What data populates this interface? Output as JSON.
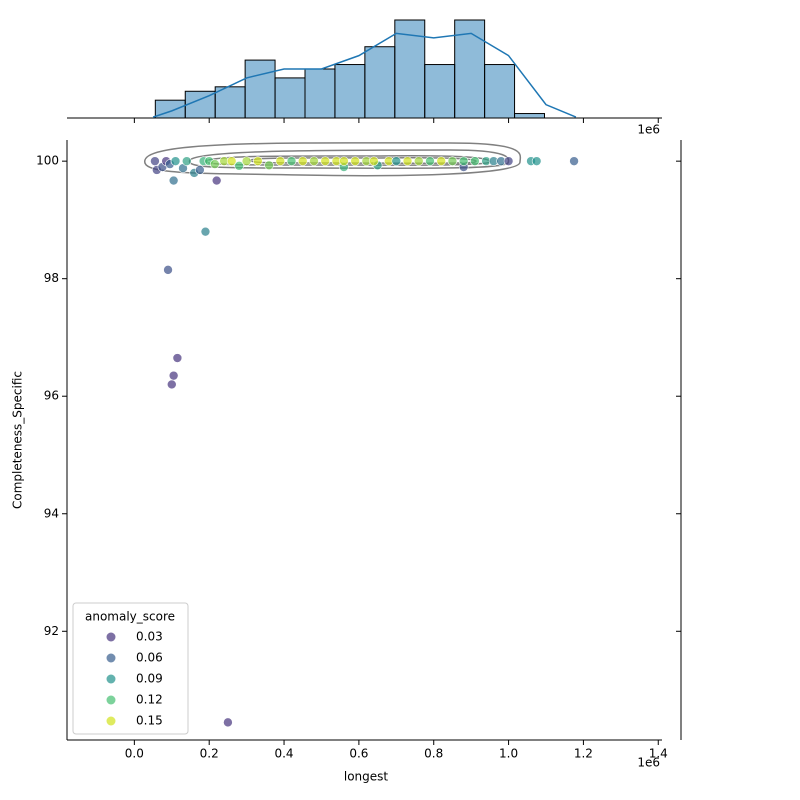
{
  "chart_data": {
    "type": "scatter",
    "x_label": "longest",
    "y_label": "Completeness_Specific",
    "x_offset_label": "1e6",
    "xlim": [
      -180000,
      1410000
    ],
    "ylim": [
      90.15,
      100.36
    ],
    "xticks": [
      {
        "value": 0,
        "label": "0.0"
      },
      {
        "value": 200000,
        "label": "0.2"
      },
      {
        "value": 400000,
        "label": "0.4"
      },
      {
        "value": 600000,
        "label": "0.6"
      },
      {
        "value": 800000,
        "label": "0.8"
      },
      {
        "value": 1000000,
        "label": "1.0"
      },
      {
        "value": 1200000,
        "label": "1.2"
      },
      {
        "value": 1400000,
        "label": "1.4"
      }
    ],
    "yticks": [
      92,
      94,
      96,
      98,
      100
    ],
    "x": [
      90000,
      190000,
      115000,
      105000,
      100000,
      250000,
      220000,
      105000,
      1175000,
      55000,
      60000,
      75000,
      85000,
      95000,
      110000,
      130000,
      140000,
      160000,
      175000,
      185000,
      200000,
      215000,
      240000,
      260000,
      280000,
      300000,
      330000,
      360000,
      390000,
      420000,
      450000,
      480000,
      510000,
      540000,
      560000,
      590000,
      620000,
      650000,
      680000,
      700000,
      730000,
      760000,
      790000,
      820000,
      850000,
      880000,
      910000,
      940000,
      960000,
      980000,
      1000000,
      1060000,
      1075000,
      560000,
      640000,
      880000
    ],
    "y": [
      98.15,
      98.8,
      96.65,
      96.35,
      96.2,
      90.45,
      99.67,
      99.67,
      100.0,
      100.0,
      99.85,
      99.9,
      100.0,
      99.95,
      100.0,
      99.88,
      100.0,
      99.8,
      99.85,
      100.0,
      100.0,
      99.95,
      100.0,
      100.0,
      99.92,
      100.0,
      100.0,
      99.93,
      100.0,
      100.0,
      100.0,
      100.0,
      100.0,
      100.0,
      99.9,
      100.0,
      100.0,
      99.93,
      100.0,
      100.0,
      100.0,
      100.0,
      100.0,
      100.0,
      100.0,
      99.9,
      100.0,
      100.0,
      100.0,
      100.0,
      100.0,
      100.0,
      100.0,
      100.0,
      100.0,
      100.0
    ],
    "hue": [
      0.05,
      0.08,
      0.02,
      0.01,
      0.03,
      0.01,
      0.01,
      0.07,
      0.06,
      0.04,
      0.04,
      0.05,
      0.03,
      0.06,
      0.09,
      0.07,
      0.1,
      0.08,
      0.06,
      0.11,
      0.12,
      0.13,
      0.14,
      0.15,
      0.12,
      0.14,
      0.16,
      0.13,
      0.15,
      0.12,
      0.16,
      0.14,
      0.15,
      0.17,
      0.11,
      0.16,
      0.14,
      0.1,
      0.15,
      0.09,
      0.16,
      0.14,
      0.12,
      0.15,
      0.13,
      0.05,
      0.12,
      0.1,
      0.08,
      0.07,
      0.04,
      0.09,
      0.09,
      0.18,
      0.17,
      0.12
    ],
    "legend_title": "anomaly_score",
    "legend": [
      {
        "value": 0.03,
        "label": "0.03",
        "color": "#46337e"
      },
      {
        "value": 0.06,
        "label": "0.06",
        "color": "#365c8d"
      },
      {
        "value": 0.09,
        "label": "0.09",
        "color": "#21918c"
      },
      {
        "value": 0.12,
        "label": "0.12",
        "color": "#44bf70"
      },
      {
        "value": 0.15,
        "label": "0.15",
        "color": "#d2e21b"
      }
    ],
    "marginal_x": {
      "type": "histogram",
      "color": "#1f77b4",
      "bins": [
        56000,
        136000,
        216000,
        296000,
        376000,
        456000,
        536000,
        616000,
        696000,
        776000,
        856000,
        936000,
        1016000,
        1096000
      ],
      "counts": [
        4,
        6,
        7,
        13,
        9,
        11,
        12,
        16,
        22,
        12,
        22,
        12,
        1
      ],
      "ylim": [
        0,
        22
      ],
      "kde": {
        "x": [
          50000,
          100000,
          200000,
          300000,
          400000,
          500000,
          600000,
          700000,
          800000,
          900000,
          1000000,
          1100000,
          1180000
        ],
        "y": [
          0.2,
          1.6,
          5,
          9,
          11,
          11,
          14,
          19,
          18,
          19,
          14,
          3,
          0.2
        ]
      }
    }
  }
}
